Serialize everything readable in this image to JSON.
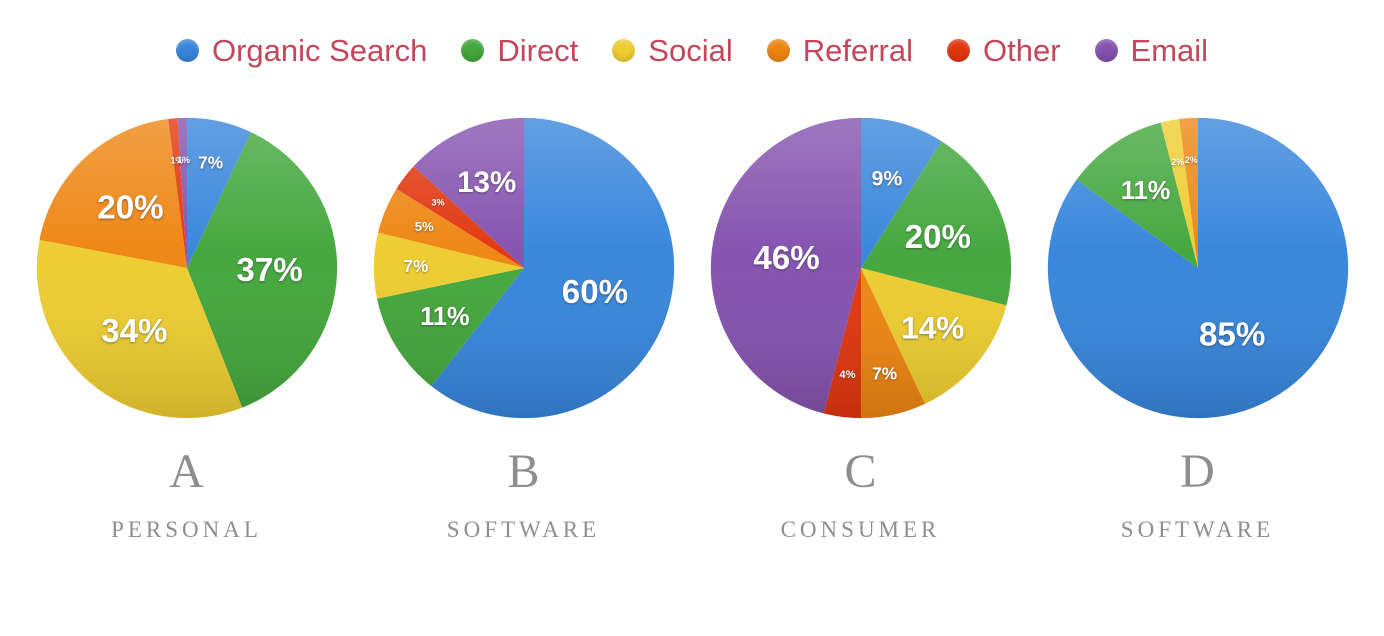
{
  "legend": {
    "text_color": "#c4465a",
    "items": [
      {
        "label": "Organic Search",
        "color": "#3685db"
      },
      {
        "label": "Direct",
        "color": "#42a63b"
      },
      {
        "label": "Social",
        "color": "#eecd2f"
      },
      {
        "label": "Referral",
        "color": "#ee8511"
      },
      {
        "label": "Other",
        "color": "#e1350e"
      },
      {
        "label": "Email",
        "color": "#8351ae"
      }
    ]
  },
  "chart_data": {
    "type": "pie",
    "legend_position": "top",
    "label_format": "percent",
    "start_angle_deg": 0,
    "direction": "clockwise",
    "categories": [
      "Organic Search",
      "Direct",
      "Social",
      "Referral",
      "Other",
      "Email"
    ],
    "colors": [
      "#3685db",
      "#42a63b",
      "#eecd2f",
      "#ee8511",
      "#e1350e",
      "#8351ae"
    ],
    "charts": [
      {
        "id": "A",
        "subtitle": "PERSONAL",
        "values": [
          7,
          37,
          34,
          20,
          1,
          1
        ],
        "labels": [
          "7%",
          "37%",
          "34%",
          "20%",
          "1%",
          "1%"
        ]
      },
      {
        "id": "B",
        "subtitle": "SOFTWARE",
        "values": [
          60,
          11,
          7,
          5,
          3,
          13
        ],
        "labels": [
          "60%",
          "11%",
          "7%",
          "5%",
          "3%",
          "13%"
        ]
      },
      {
        "id": "C",
        "subtitle": "CONSUMER",
        "values": [
          9,
          20,
          14,
          7,
          4,
          46
        ],
        "labels": [
          "9%",
          "20%",
          "14%",
          "7%",
          "4%",
          "46%"
        ]
      },
      {
        "id": "D",
        "subtitle": "SOFTWARE",
        "values": [
          85,
          11,
          2,
          2,
          0,
          0
        ],
        "labels": [
          "85%",
          "11%",
          "2%",
          "2%",
          "",
          ""
        ]
      }
    ]
  }
}
